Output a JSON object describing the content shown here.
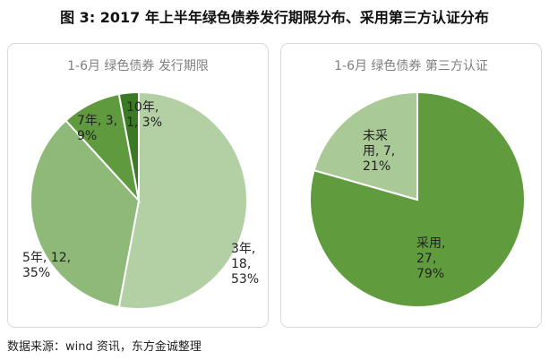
{
  "figure_title": "图 3: 2017 年上半年绿色债券发行期限分布、采用第三方认证分布",
  "source": "数据来源：wind 资讯，东方金诚整理",
  "chart_data": [
    {
      "type": "pie",
      "title": "1-6月 绿色债券 发行期限",
      "slices": [
        {
          "label": [
            "3年,",
            "18,",
            "53%"
          ],
          "value": 18,
          "percent": 53,
          "color": "#b3cfa4"
        },
        {
          "label": [
            "5年, 12,",
            "35%"
          ],
          "value": 12,
          "percent": 35,
          "color": "#8eb978"
        },
        {
          "label": [
            "7年, 3,",
            "9%"
          ],
          "value": 3,
          "percent": 9,
          "color": "#5f9b3e"
        },
        {
          "label": [
            "10年,",
            "1, 3%"
          ],
          "value": 1,
          "percent": 3,
          "color": "#3b7a25"
        }
      ]
    },
    {
      "type": "pie",
      "title": "1-6月 绿色债券 第三方认证",
      "slices": [
        {
          "label": [
            "采用,",
            "27,",
            "79%"
          ],
          "value": 27,
          "percent": 79,
          "color": "#609b3e"
        },
        {
          "label": [
            "未采",
            "用, 7,",
            "21%"
          ],
          "value": 7,
          "percent": 21,
          "color": "#a9c996"
        }
      ]
    }
  ]
}
